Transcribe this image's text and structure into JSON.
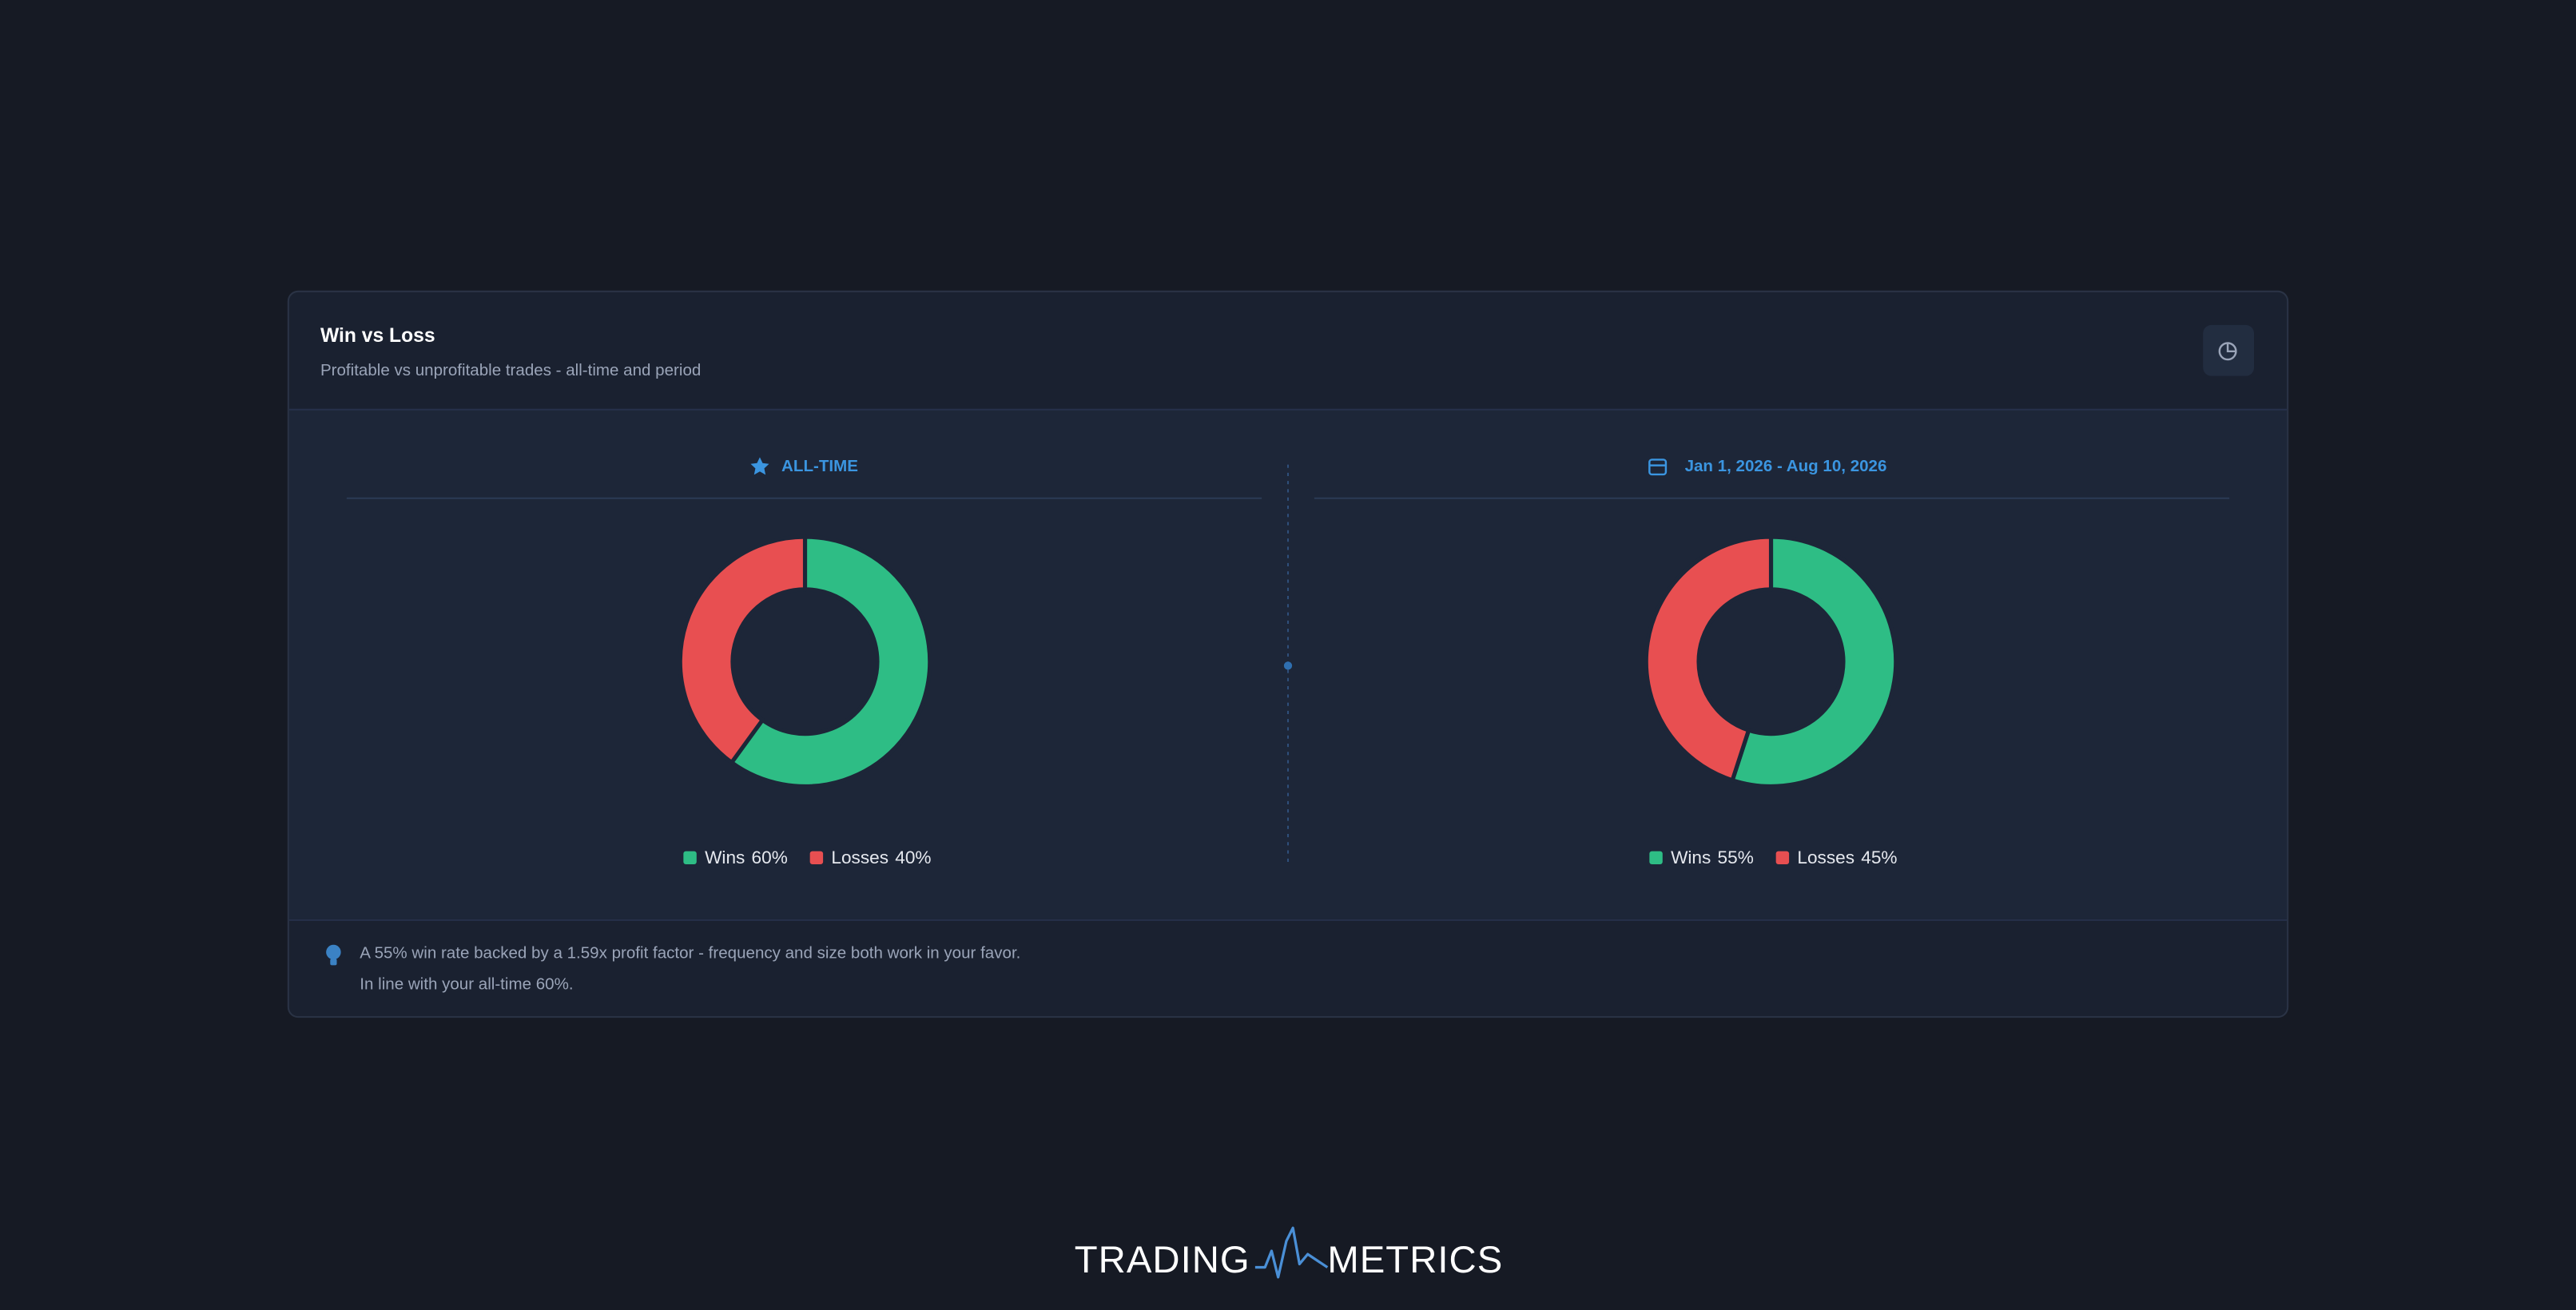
{
  "header": {
    "title": "Win vs Loss",
    "subtitle": "Profitable vs unprofitable trades - all-time and period"
  },
  "chart_data": [
    {
      "type": "donut",
      "title": "ALL-TIME",
      "categories": [
        "Wins",
        "Losses"
      ],
      "values": [
        60,
        40
      ],
      "value_labels": [
        "60%",
        "40%"
      ],
      "colors": [
        "#2ebd85",
        "#e84f51"
      ]
    },
    {
      "type": "donut",
      "title": "Jan 1, 2026 - Aug 10, 2026",
      "categories": [
        "Wins",
        "Losses"
      ],
      "values": [
        55,
        45
      ],
      "value_labels": [
        "55%",
        "45%"
      ],
      "colors": [
        "#2ebd85",
        "#e84f51"
      ]
    }
  ],
  "insight": {
    "lines": [
      "A 55% win rate backed by a 1.59x profit factor - frequency and size both work in your favor.",
      "In line with your all-time 60%."
    ]
  },
  "logo": {
    "left": "TRADING",
    "right": "METRICS"
  }
}
